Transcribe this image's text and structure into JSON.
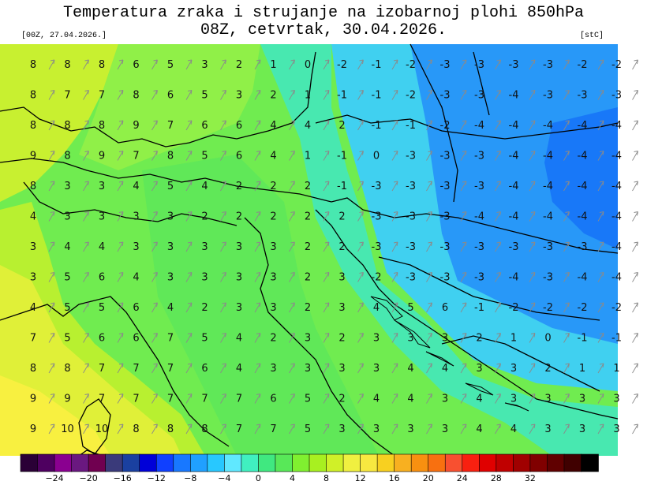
{
  "header": {
    "title_line1": "Temperatura zraka i strujanje na izobarnoj plohi 850hPa",
    "title_line2": "08Z, cetvrtak, 30.04.2026.",
    "run": "[00Z, 27.04.2026.]",
    "unit": "[stC]"
  },
  "legend": {
    "labels": [
      "−24",
      "−20",
      "−16",
      "−12",
      "−8",
      "−4",
      "0",
      "4",
      "8",
      "12",
      "16",
      "20",
      "24",
      "28",
      "32"
    ],
    "colors": [
      "#2a0036",
      "#4e0060",
      "#8a0090",
      "#6a1880",
      "#700050",
      "#3a3a7a",
      "#1a40a0",
      "#0000d8",
      "#1040ff",
      "#1878ff",
      "#20a0ff",
      "#28c8ff",
      "#60e8ff",
      "#40f0c0",
      "#40e880",
      "#58e858",
      "#80f030",
      "#a8f020",
      "#d0f028",
      "#f0f040",
      "#f8e840",
      "#f8d020",
      "#f8b020",
      "#f89010",
      "#f87010",
      "#f85030",
      "#f82010",
      "#e00000",
      "#c00000",
      "#a00000",
      "#800000",
      "#600000",
      "#400000",
      "#000000"
    ]
  },
  "map_data": {
    "rows": [
      [
        8,
        8,
        8,
        6,
        5,
        3,
        2,
        1,
        0,
        -2,
        -1,
        -2,
        -3,
        -3,
        -3,
        -3,
        -2,
        -2
      ],
      [
        8,
        7,
        7,
        8,
        6,
        5,
        3,
        2,
        1,
        -1,
        -1,
        -2,
        -3,
        -3,
        -4,
        -3,
        -3,
        -3
      ],
      [
        8,
        8,
        8,
        9,
        7,
        6,
        6,
        4,
        4,
        2,
        -1,
        -1,
        -2,
        -4,
        -4,
        -4,
        -4,
        -4
      ],
      [
        9,
        8,
        9,
        7,
        8,
        5,
        6,
        4,
        1,
        -1,
        0,
        -3,
        -3,
        -3,
        -4,
        -4,
        -4,
        -4
      ],
      [
        8,
        3,
        3,
        4,
        5,
        4,
        2,
        2,
        2,
        -1,
        -3,
        -3,
        -3,
        -3,
        -4,
        -4,
        -4,
        -4
      ],
      [
        4,
        3,
        3,
        3,
        3,
        2,
        2,
        2,
        2,
        2,
        -3,
        -3,
        -3,
        -4,
        -4,
        -4,
        -4,
        -4
      ],
      [
        3,
        4,
        4,
        3,
        3,
        3,
        3,
        3,
        2,
        2,
        -3,
        -3,
        -3,
        -3,
        -3,
        -3,
        -3,
        -4
      ],
      [
        3,
        5,
        6,
        4,
        3,
        3,
        3,
        3,
        2,
        3,
        -2,
        -3,
        -3,
        -3,
        -4,
        -3,
        -4,
        -4
      ],
      [
        4,
        5,
        5,
        6,
        4,
        2,
        3,
        3,
        2,
        3,
        4,
        5,
        6,
        -1,
        -2,
        -2,
        -2,
        -2
      ],
      [
        7,
        5,
        6,
        6,
        7,
        5,
        4,
        2,
        3,
        2,
        3,
        3,
        3,
        2,
        1,
        0,
        -1,
        -1
      ],
      [
        8,
        8,
        7,
        7,
        7,
        6,
        4,
        3,
        3,
        3,
        3,
        4,
        4,
        3,
        3,
        2,
        1,
        1
      ],
      [
        9,
        9,
        7,
        7,
        7,
        7,
        7,
        6,
        5,
        2,
        4,
        4,
        3,
        4,
        3,
        3,
        3,
        3
      ],
      [
        9,
        10,
        10,
        8,
        8,
        8,
        7,
        7,
        5,
        3,
        3,
        3,
        3,
        4,
        4,
        3,
        3,
        3
      ]
    ]
  }
}
